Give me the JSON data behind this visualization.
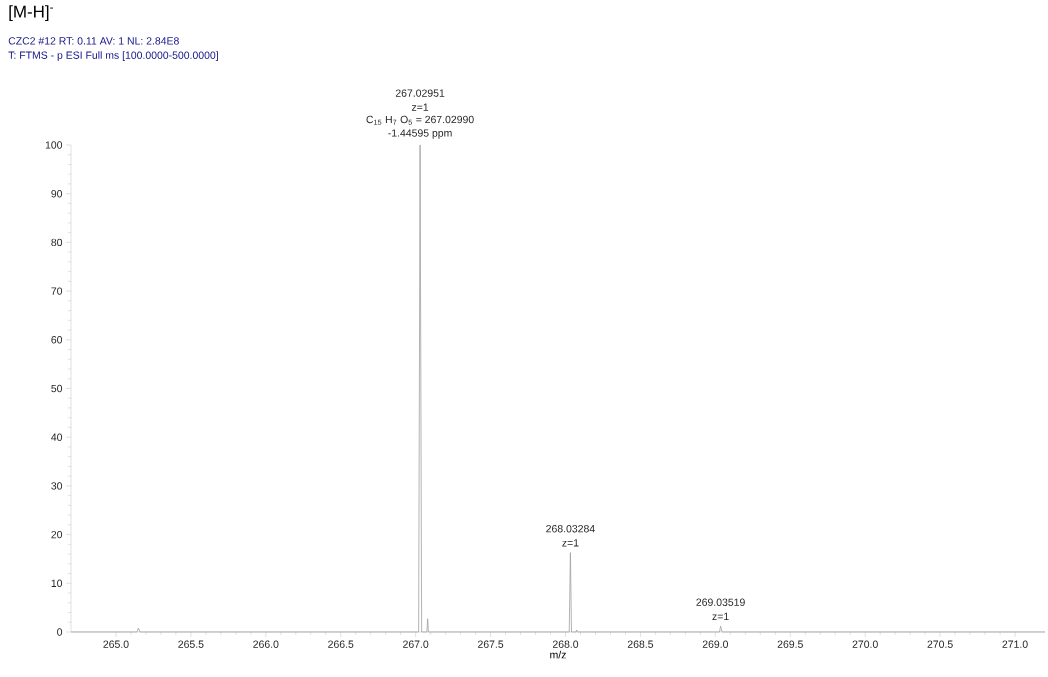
{
  "chart_data": {
    "type": "line",
    "title": "[M-H]$^{-}$",
    "subtitle": "CZC2 #12   RT: 0.11   AV: 1   NL: 2.84E8",
    "xlabel": "m/z",
    "x": [
      264.7,
      265.14,
      265.15,
      265.16,
      267.02,
      267.0295,
      267.04,
      267.075,
      267.08,
      267.085,
      268.025,
      268.0328,
      268.04,
      268.07,
      268.075,
      268.08,
      269.028,
      269.035,
      269.045,
      271.2
    ],
    "series": [
      {
        "color": "#a0a0a0",
        "values": [
          0,
          0,
          0.8,
          0,
          0,
          100,
          0,
          0,
          2.7,
          0,
          0,
          16.3,
          0,
          0,
          0.4,
          0,
          0,
          1.2,
          0,
          0
        ]
      }
    ],
    "xlim": [
      264.7,
      271.2
    ],
    "ylim": [
      0,
      100
    ],
    "xticks": [
      {
        "value": 265,
        "label": "265.0"
      },
      {
        "value": 265.5,
        "label": "265.5"
      },
      {
        "value": 266,
        "label": "266.0"
      },
      {
        "value": 266.5,
        "label": "266.5"
      },
      {
        "value": 267,
        "label": "267.0"
      },
      {
        "value": 267.5,
        "label": "267.5"
      },
      {
        "value": 268,
        "label": "268.0"
      },
      {
        "value": 268.5,
        "label": "268.5"
      },
      {
        "value": 269,
        "label": "269.0"
      },
      {
        "value": 269.5,
        "label": "269.5"
      },
      {
        "value": 270,
        "label": "270.0"
      },
      {
        "value": 270.5,
        "label": "270.5"
      },
      {
        "value": 271,
        "label": "271.0"
      }
    ],
    "yticks": [
      0,
      10,
      20,
      30,
      40,
      50,
      60,
      70,
      80,
      90,
      100
    ],
    "grid": false,
    "marker": "none",
    "line_style": "solid",
    "annotations": [
      "267.02951",
      "z=1",
      {
        "text": "C$_{15}$ H$_{7}$ O$_{5}$ = 267.02990",
        "x": 267.0295,
        "y": 100
      },
      {
        "text": "-1.44595 ppm",
        "x": 267.0295,
        "y": 100
      },
      {
        "text": "268.03284",
        "x": 268.0328,
        "y": 16.3
      },
      {
        "text": "z=1",
        "x": 268.0328,
        "y": 16.3
      },
      {
        "text": "269.03519",
        "x": 269.035,
        "y": 1.2
      },
      {
        "text": "z=1",
        "x": 269.035,
        "y": 1.2
      },
      "T: FTMS - p ESI Full ms [100.0000-500.0000]"
    ]
  }
}
